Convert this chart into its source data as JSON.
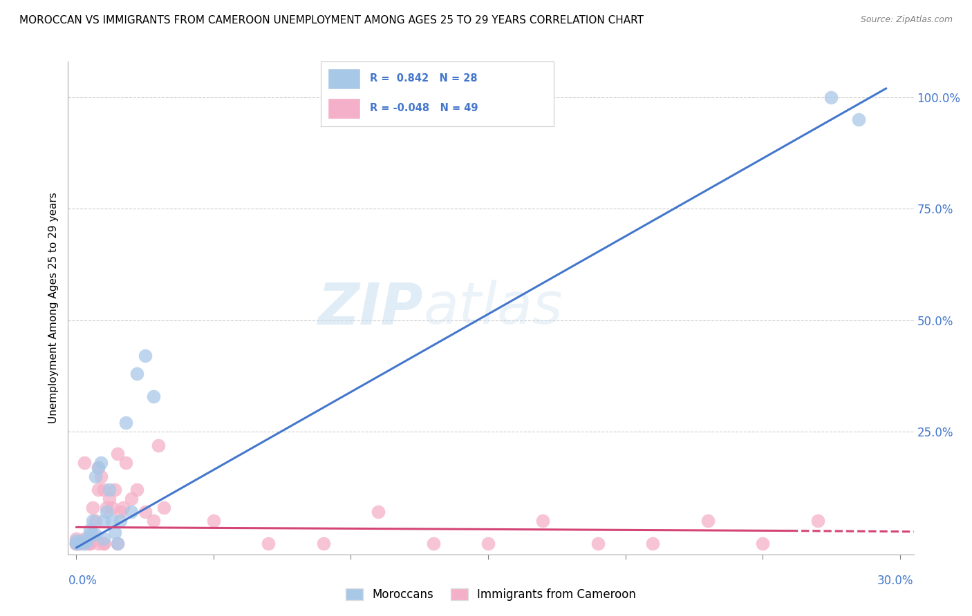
{
  "title": "MOROCCAN VS IMMIGRANTS FROM CAMEROON UNEMPLOYMENT AMONG AGES 25 TO 29 YEARS CORRELATION CHART",
  "source": "Source: ZipAtlas.com",
  "ylabel": "Unemployment Among Ages 25 to 29 years",
  "legend_label_blue": "Moroccans",
  "legend_label_pink": "Immigrants from Cameroon",
  "blue_color": "#a8c8e8",
  "blue_line_color": "#4477cc",
  "pink_color": "#f4b0c8",
  "pink_line_color": "#d44477",
  "watermark_zip": "ZIP",
  "watermark_atlas": "atlas",
  "y_tick_vals": [
    0.25,
    0.5,
    0.75,
    1.0
  ],
  "y_tick_labels": [
    "25.0%",
    "50.0%",
    "75.0%",
    "100.0%"
  ],
  "xlim": [
    -0.003,
    0.305
  ],
  "ylim": [
    -0.025,
    1.08
  ],
  "blue_line_x0": 0.0,
  "blue_line_y0": -0.01,
  "blue_line_x1": 0.295,
  "blue_line_y1": 1.02,
  "pink_line_x0": 0.0,
  "pink_line_y0": 0.036,
  "pink_line_x1": 0.26,
  "pink_line_y1": 0.028,
  "pink_line_dash_x0": 0.26,
  "pink_line_dash_y0": 0.028,
  "pink_line_dash_x1": 0.305,
  "pink_line_dash_y1": 0.026,
  "blue_points_x": [
    0.0,
    0.0,
    0.001,
    0.002,
    0.003,
    0.004,
    0.005,
    0.005,
    0.006,
    0.007,
    0.007,
    0.008,
    0.009,
    0.01,
    0.01,
    0.011,
    0.012,
    0.013,
    0.014,
    0.015,
    0.016,
    0.018,
    0.02,
    0.022,
    0.025,
    0.028,
    0.275,
    0.285
  ],
  "blue_points_y": [
    0.0,
    0.005,
    0.0,
    0.005,
    0.0,
    0.005,
    0.02,
    0.03,
    0.05,
    0.02,
    0.15,
    0.17,
    0.18,
    0.01,
    0.05,
    0.07,
    0.12,
    0.05,
    0.025,
    0.0,
    0.05,
    0.27,
    0.07,
    0.38,
    0.42,
    0.33,
    1.0,
    0.95
  ],
  "pink_points_x": [
    0.0,
    0.0,
    0.0,
    0.001,
    0.002,
    0.003,
    0.003,
    0.004,
    0.005,
    0.005,
    0.006,
    0.006,
    0.007,
    0.008,
    0.008,
    0.009,
    0.01,
    0.01,
    0.011,
    0.012,
    0.013,
    0.014,
    0.015,
    0.016,
    0.017,
    0.018,
    0.02,
    0.022,
    0.025,
    0.028,
    0.03,
    0.032,
    0.05,
    0.07,
    0.09,
    0.11,
    0.13,
    0.15,
    0.17,
    0.19,
    0.21,
    0.23,
    0.25,
    0.27,
    0.0,
    0.005,
    0.008,
    0.01,
    0.015
  ],
  "pink_points_y": [
    0.0,
    0.0,
    0.01,
    0.0,
    0.0,
    0.01,
    0.18,
    0.0,
    0.0,
    0.01,
    0.02,
    0.08,
    0.05,
    0.12,
    0.17,
    0.15,
    0.0,
    0.12,
    0.08,
    0.1,
    0.08,
    0.12,
    0.2,
    0.07,
    0.08,
    0.18,
    0.1,
    0.12,
    0.07,
    0.05,
    0.22,
    0.08,
    0.05,
    0.0,
    0.0,
    0.07,
    0.0,
    0.0,
    0.05,
    0.0,
    0.0,
    0.05,
    0.0,
    0.05,
    0.0,
    0.0,
    0.0,
    0.0,
    0.0
  ]
}
